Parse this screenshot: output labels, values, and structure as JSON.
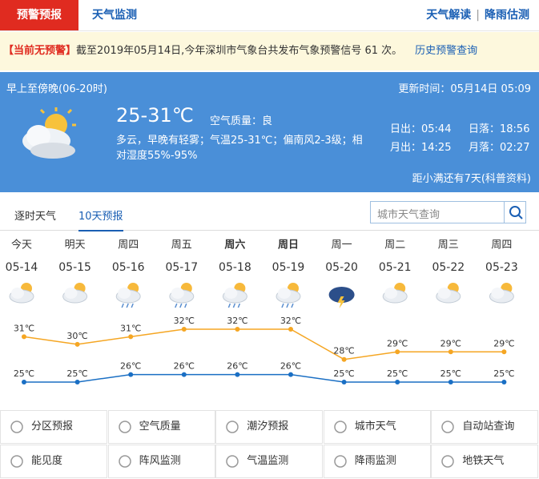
{
  "tabs": {
    "active": "预警预报",
    "monitor": "天气监测",
    "links": [
      "天气解读",
      "降雨估测"
    ]
  },
  "alert": {
    "status": "【当前无预警】",
    "text": "截至2019年05月14日,今年深圳市气象台共发布气象预警信号 61 次。",
    "history": "历史预警查询"
  },
  "today": {
    "period": "早上至傍晚(06-20时)",
    "temp": "25-31℃",
    "aqi_label": "空气质量：",
    "aqi": "良",
    "desc_line1": "多云，早晚有轻雾；气温25-31℃；偏南风2-3级；相",
    "desc_line2": "对湿度55%-95%",
    "updated": "更新时间：05月14日 05:09",
    "sunrise": "日出：05:44",
    "sunset": "日落：18:56",
    "moonrise": "月出：14:25",
    "moonset": "月落：02:27",
    "solar_term": "距小满还有7天(科普资料)"
  },
  "forecast_tabs": [
    "逐时天气",
    "10天预报"
  ],
  "search_placeholder": "城市天气查询",
  "forecast": {
    "days": [
      "今天",
      "明天",
      "周四",
      "周五",
      "周六",
      "周日",
      "周一",
      "周二",
      "周三",
      "周四"
    ],
    "dates": [
      "05-14",
      "05-15",
      "05-16",
      "05-17",
      "05-18",
      "05-19",
      "05-20",
      "05-21",
      "05-22",
      "05-23"
    ],
    "high": {
      "values": [
        31,
        30,
        31,
        32,
        32,
        32,
        28,
        29,
        29,
        29
      ],
      "value_labels": [
        "31℃",
        "30℃",
        "31℃",
        "32℃",
        "32℃",
        "32℃",
        "28℃",
        "29℃",
        "29℃",
        "29℃"
      ],
      "color": "#f5a623"
    },
    "low": {
      "values": [
        25,
        25,
        26,
        26,
        26,
        26,
        25,
        25,
        25,
        25
      ],
      "value_labels": [
        "25℃",
        "25℃",
        "26℃",
        "26℃",
        "26℃",
        "26℃",
        "25℃",
        "25℃",
        "25℃",
        "25℃"
      ],
      "color": "#1a6fc4"
    }
  },
  "menu": [
    [
      "分区预报",
      "空气质量",
      "潮汐预报",
      "城市天气",
      "自动站查询"
    ],
    [
      "能见度",
      "阵风监测",
      "气温监测",
      "降雨监测",
      "地铁天气"
    ]
  ]
}
